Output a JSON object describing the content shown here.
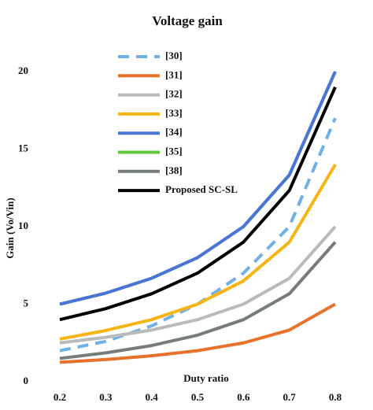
{
  "chart_data": {
    "type": "line",
    "title": "Voltage gain",
    "x_label": "Duty ratio",
    "y_label": "Gain (Vo/Vin)",
    "x": [
      0.2,
      0.3,
      0.4,
      0.5,
      0.6,
      0.7,
      0.8
    ],
    "xlim": [
      0.2,
      0.8
    ],
    "xticks": [
      0.2,
      0.3,
      0.4,
      0.5,
      0.6,
      0.7,
      0.8
    ],
    "ylim": [
      0,
      20
    ],
    "yticks": [
      0,
      5,
      10,
      15,
      20
    ],
    "grid": false,
    "series": [
      {
        "name": "[30]",
        "color": "#6fb0e6",
        "dashed": true,
        "values": [
          2,
          2.6,
          3.6,
          5,
          7,
          10,
          17
        ]
      },
      {
        "name": "[31]",
        "color": "#e8722a",
        "values": [
          1.25,
          1.43,
          1.67,
          2,
          2.5,
          3.33,
          5
        ]
      },
      {
        "name": "[32]",
        "color": "#b8bbbb",
        "values": [
          2.5,
          2.86,
          3.33,
          4,
          5,
          6.67,
          10
        ]
      },
      {
        "name": "[33]",
        "color": "#f7b515",
        "values": [
          2.75,
          3.3,
          4,
          5,
          6.5,
          9,
          14
        ]
      },
      {
        "name": "[34]",
        "color": "#4a74d8",
        "values": [
          5,
          5.71,
          6.67,
          8,
          10,
          13.33,
          20
        ]
      },
      {
        "name": "[35]",
        "color": "#5ec83a",
        "values": [
          5,
          5.71,
          6.67,
          8,
          10,
          13.33,
          20
        ]
      },
      {
        "name": "[38]",
        "color": "#767b7b",
        "values": [
          1.5,
          1.86,
          2.33,
          3,
          4,
          5.67,
          9
        ]
      },
      {
        "name": "Proposed SC-SL",
        "color": "#000000",
        "values": [
          4,
          4.71,
          5.67,
          7,
          9,
          12.33,
          19
        ]
      }
    ]
  }
}
